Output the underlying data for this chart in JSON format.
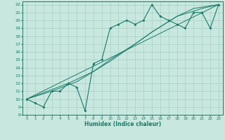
{
  "title": "",
  "xlabel": "Humidex (Indice chaleur)",
  "ylabel": "",
  "xlim": [
    -0.5,
    23.5
  ],
  "ylim": [
    8,
    22.4
  ],
  "xticks": [
    0,
    1,
    2,
    3,
    4,
    5,
    6,
    7,
    8,
    9,
    10,
    11,
    12,
    13,
    14,
    15,
    16,
    17,
    18,
    19,
    20,
    21,
    22,
    23
  ],
  "yticks": [
    8,
    9,
    10,
    11,
    12,
    13,
    14,
    15,
    16,
    17,
    18,
    19,
    20,
    21,
    22
  ],
  "background_color": "#c8e8df",
  "grid_color": "#a8cec5",
  "line_color": "#1a7a6a",
  "marker_color": "#1a7a6a",
  "series_main": [
    [
      0,
      10
    ],
    [
      1,
      9.5
    ],
    [
      2,
      9
    ],
    [
      3,
      11
    ],
    [
      4,
      11
    ],
    [
      5,
      12
    ],
    [
      6,
      11.5
    ],
    [
      7,
      8.5
    ],
    [
      8,
      14.5
    ],
    [
      9,
      15
    ],
    [
      10,
      19
    ],
    [
      11,
      19.5
    ],
    [
      12,
      20
    ],
    [
      13,
      19.5
    ],
    [
      14,
      20
    ],
    [
      15,
      22
    ],
    [
      16,
      20.5
    ],
    [
      17,
      20
    ],
    [
      18,
      19.5
    ],
    [
      19,
      19
    ],
    [
      20,
      21
    ],
    [
      21,
      21
    ],
    [
      22,
      19
    ],
    [
      23,
      22
    ]
  ],
  "series_line1": [
    [
      0,
      10
    ],
    [
      23,
      22
    ]
  ],
  "series_line2": [
    [
      0,
      10
    ],
    [
      5,
      12
    ],
    [
      8,
      13.5
    ],
    [
      10,
      15
    ],
    [
      13,
      17
    ],
    [
      15,
      18.5
    ],
    [
      18,
      20.5
    ],
    [
      20,
      21.5
    ],
    [
      23,
      22
    ]
  ],
  "series_line3": [
    [
      0,
      10
    ],
    [
      3,
      11
    ],
    [
      6,
      12.2
    ],
    [
      8,
      13.5
    ],
    [
      10,
      14.8
    ],
    [
      13,
      17
    ],
    [
      15,
      18.5
    ],
    [
      18,
      20.5
    ],
    [
      21,
      21.5
    ],
    [
      23,
      22
    ]
  ]
}
